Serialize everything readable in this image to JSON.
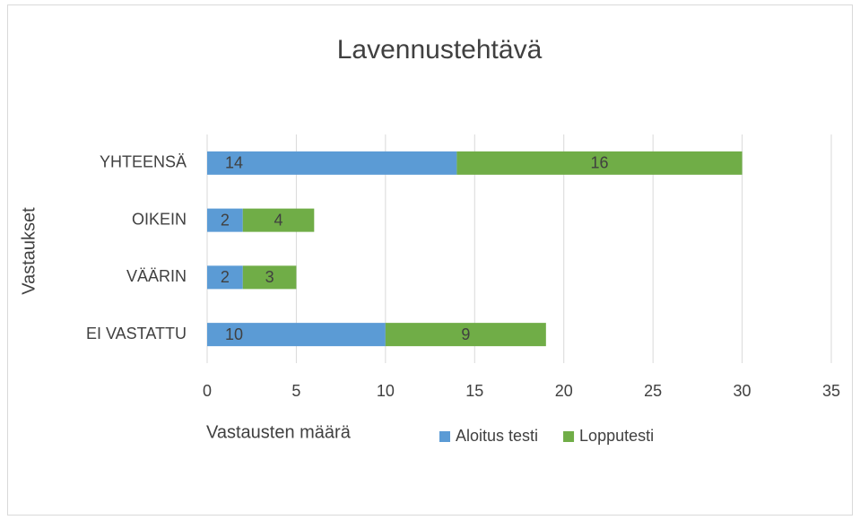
{
  "chart_data": {
    "type": "stacked_bar_horizontal",
    "title": "Lavennustehtävä",
    "x_axis_label": "Vastausten määrä",
    "y_axis_label": "Vastaukset",
    "categories": [
      "YHTEENSÄ",
      "OIKEIN",
      "VÄÄRIN",
      "EI VASTATTU"
    ],
    "series": [
      {
        "name": "Aloitus testi",
        "color": "#5b9bd5",
        "values": [
          14,
          2,
          2,
          10
        ]
      },
      {
        "name": "Lopputesti",
        "color": "#70ad47",
        "values": [
          16,
          4,
          3,
          9
        ]
      }
    ],
    "xlim": [
      0,
      35
    ],
    "xticks": [
      0,
      5,
      10,
      15,
      20,
      25,
      30,
      35
    ],
    "grid": true,
    "legend": "bottom"
  }
}
